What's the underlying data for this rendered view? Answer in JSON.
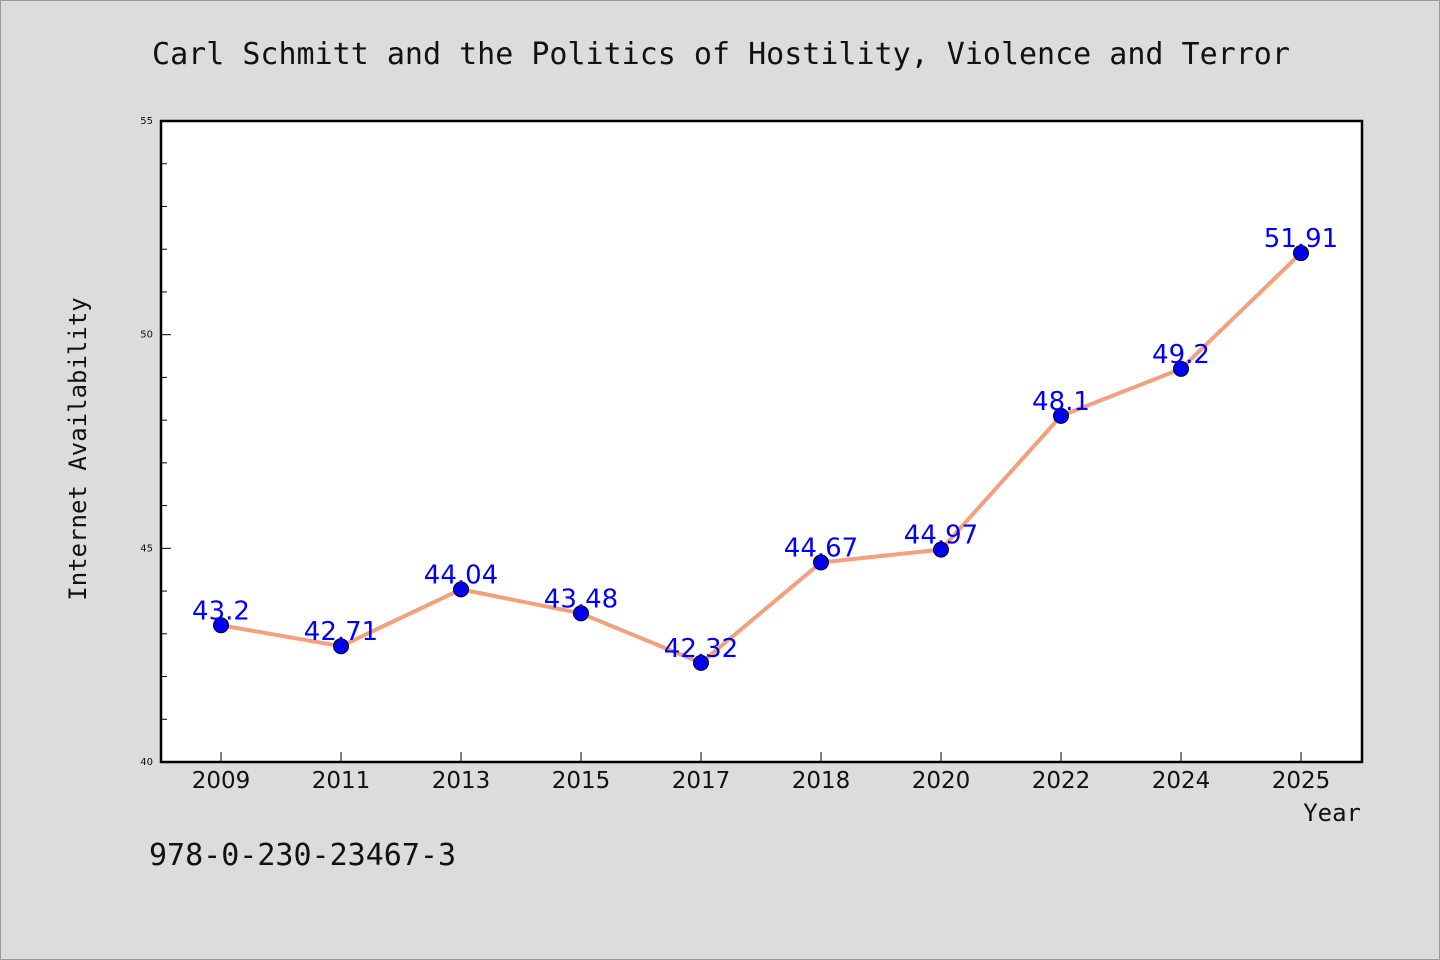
{
  "chart_data": {
    "type": "line",
    "title": "Carl Schmitt and the Politics of Hostility, Violence and Terror",
    "xlabel": "Year",
    "ylabel": "Internet Availability",
    "categories": [
      "2009",
      "2011",
      "2013",
      "2015",
      "2017",
      "2018",
      "2020",
      "2022",
      "2024",
      "2025"
    ],
    "series": [
      {
        "values": [
          43.2,
          42.71,
          44.04,
          43.48,
          42.32,
          44.67,
          44.97,
          48.1,
          49.2,
          51.91
        ],
        "data_labels": [
          "43.2",
          "42.71",
          "44.04",
          "43.48",
          "42.32",
          "44.67",
          "44.97",
          "48.1",
          "49.2",
          "51.91"
        ]
      }
    ],
    "ylim": [
      40,
      55
    ],
    "yticks": [
      "40",
      "45",
      "50",
      "55"
    ],
    "grid": false,
    "legend": "none",
    "line_color": "#f4a07c",
    "marker_color": "#0000ee",
    "label_color": "#0000ff"
  },
  "footer": {
    "isbn": "978-0-230-23467-3"
  }
}
